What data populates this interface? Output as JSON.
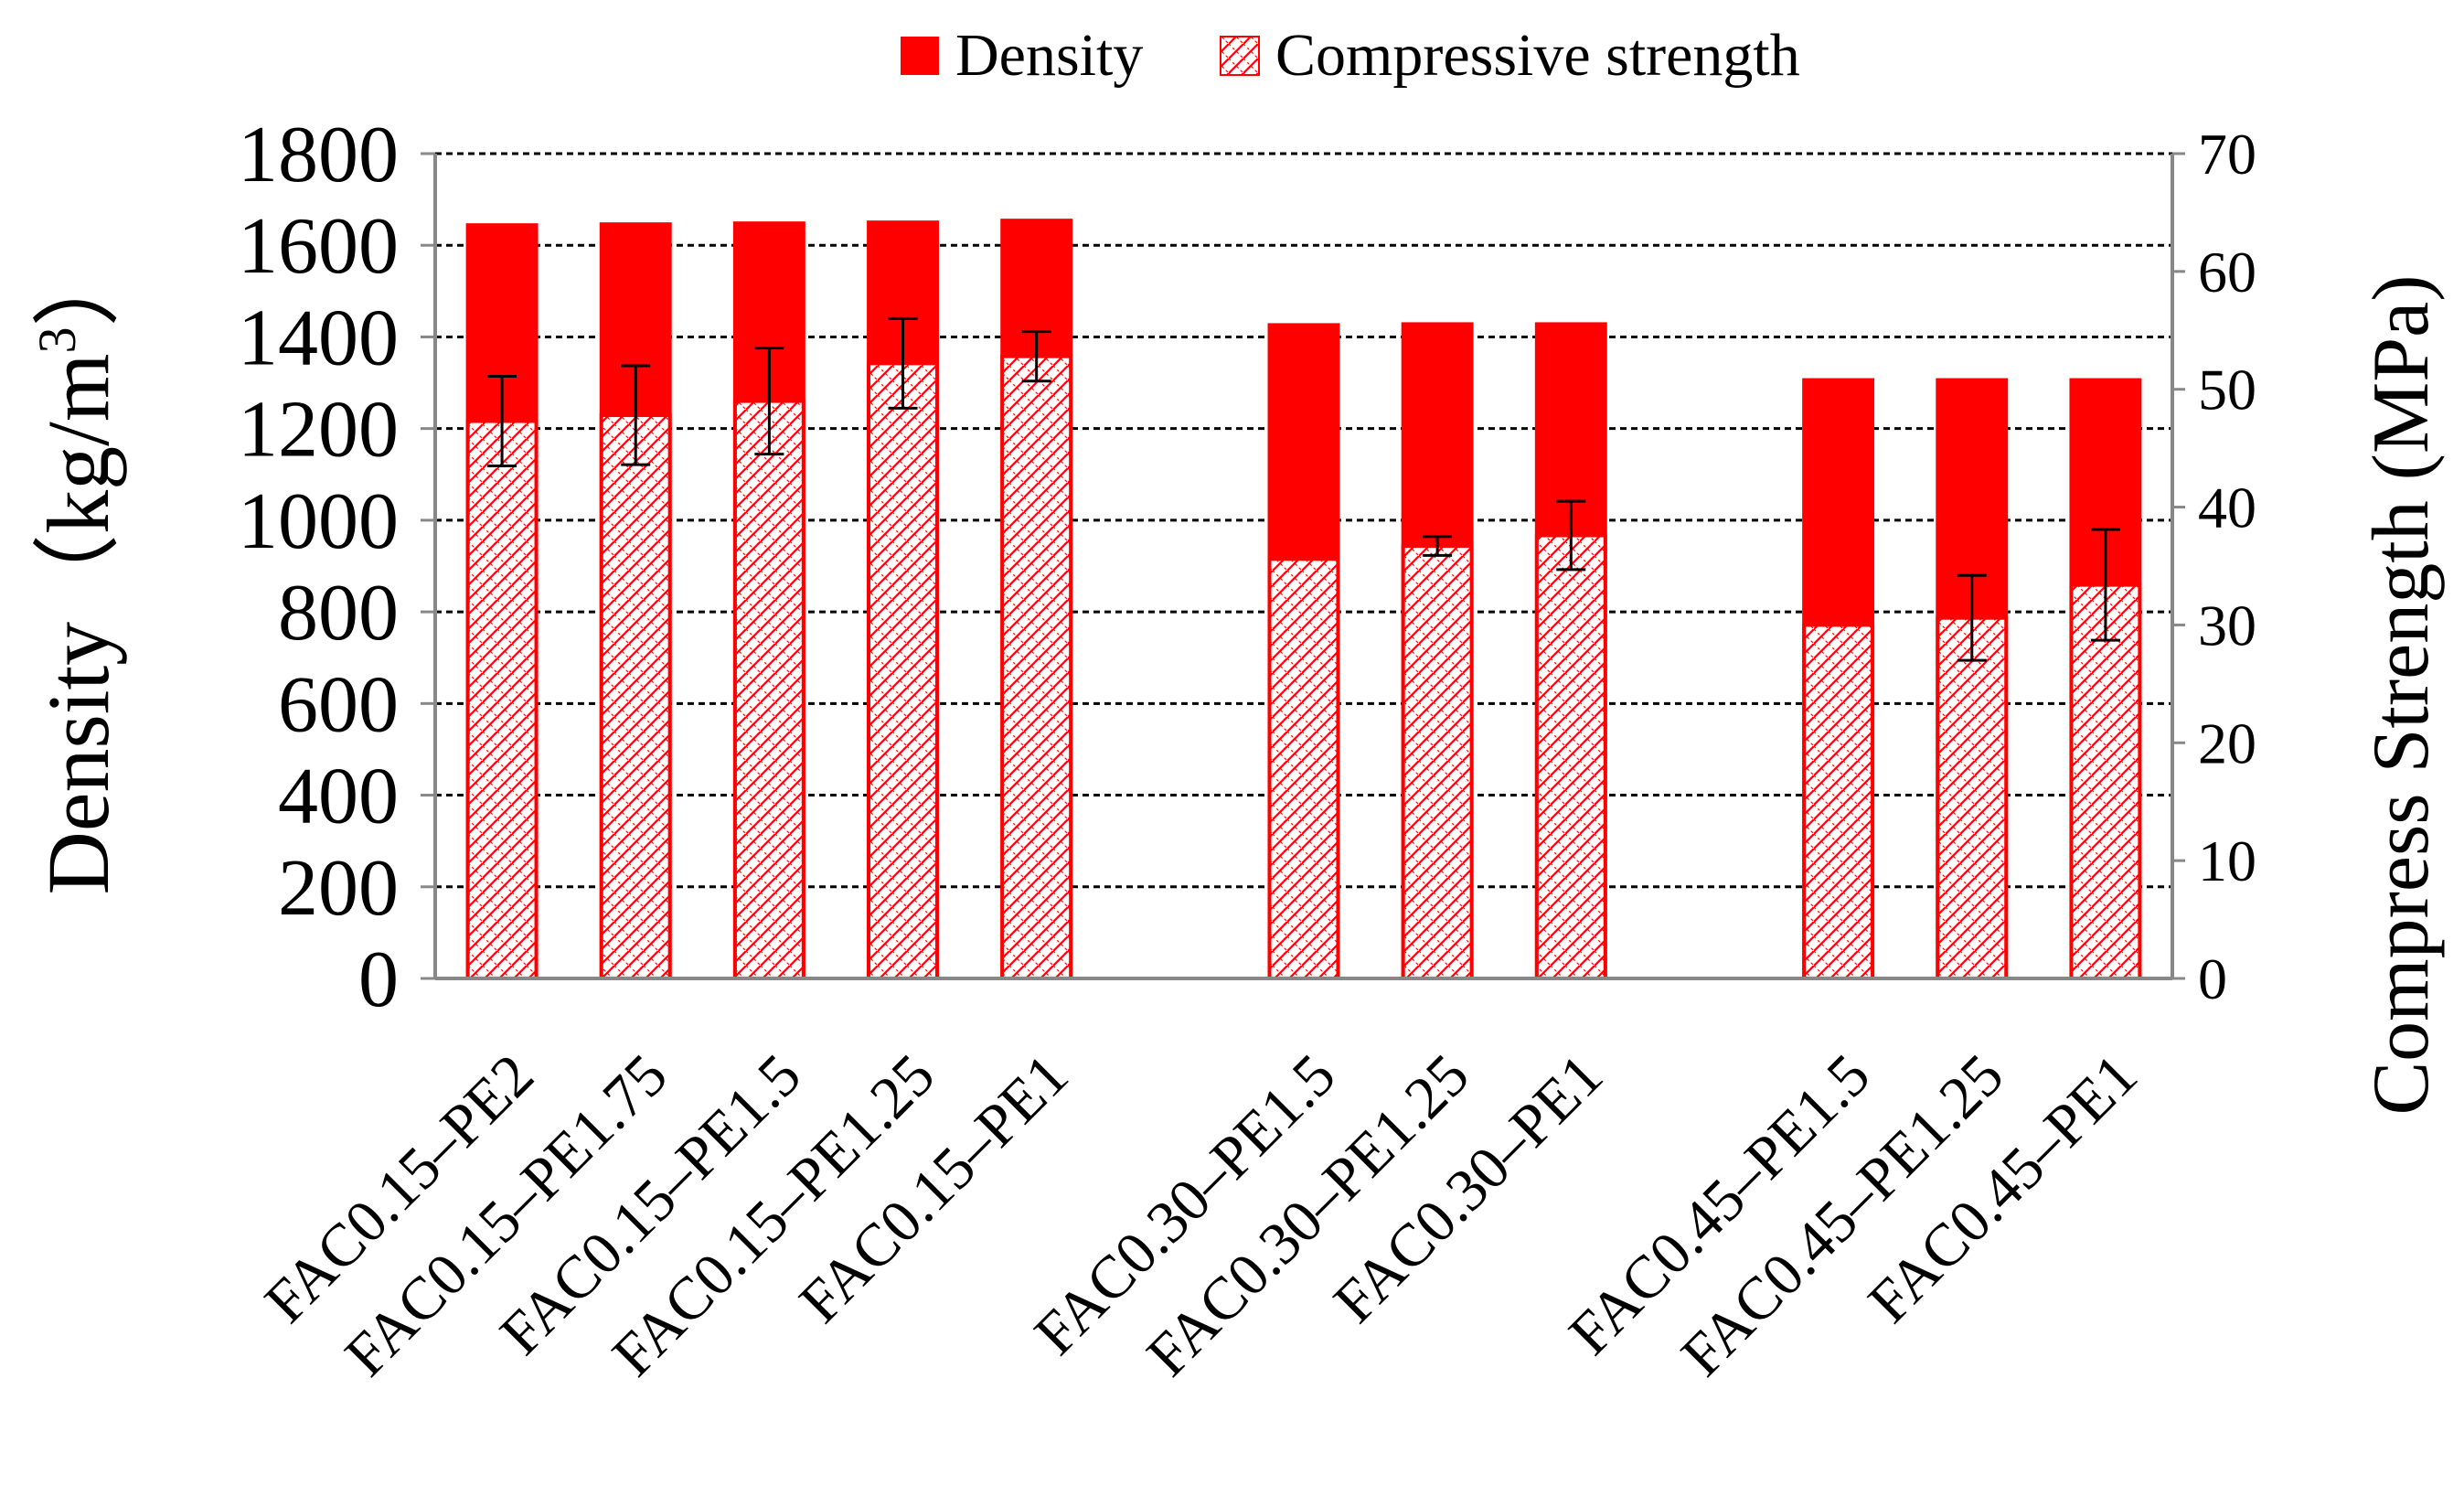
{
  "chart_data": {
    "type": "bar",
    "legend": {
      "position": "top",
      "items": [
        {
          "label": "Density",
          "style": "solid",
          "color": "#ff0000"
        },
        {
          "label": "Compressive strength",
          "style": "hatched",
          "color": "#ff0000"
        }
      ]
    },
    "y_left": {
      "label": "Density（kg/m",
      "label_sup": "3",
      "label_close": "）",
      "range": [
        0,
        1800
      ],
      "ticks": [
        "0",
        "200",
        "400",
        "600",
        "800",
        "1000",
        "1200",
        "1400",
        "1600",
        "1800"
      ]
    },
    "y_right": {
      "label": "Compress Strength (MPa)",
      "range": [
        0,
        70
      ],
      "ticks": [
        "0",
        "10",
        "20",
        "30",
        "40",
        "50",
        "60",
        "70"
      ]
    },
    "grid": "horizontal-dashed",
    "categories": [
      "FAC0.15–PE2",
      "FAC0.15–PE1.75",
      "FAC0.15–PE1.5",
      "FAC0.15–PE1.25",
      "FAC0.15–PE1",
      "FAC0.30–PE1.5",
      "FAC0.30–PE1.25",
      "FAC0.30–PE1",
      "FAC0.45–PE1.5",
      "FAC0.45–PE1.25",
      "FAC0.45–PE1"
    ],
    "groups": [
      5,
      3,
      3
    ],
    "series": [
      {
        "name": "Density",
        "axis": "left",
        "values": [
          1648,
          1650,
          1652,
          1654,
          1658,
          1430,
          1432,
          1432,
          1310,
          1310,
          1310
        ]
      },
      {
        "name": "Compressive strength",
        "axis": "right",
        "values": [
          47.3,
          47.8,
          49.0,
          52.2,
          52.8,
          35.6,
          36.7,
          37.6,
          30.0,
          30.6,
          33.4
        ],
        "error": [
          3.8,
          4.2,
          4.5,
          3.8,
          2.1,
          0,
          0.8,
          2.9,
          0,
          3.6,
          4.7
        ]
      }
    ]
  }
}
